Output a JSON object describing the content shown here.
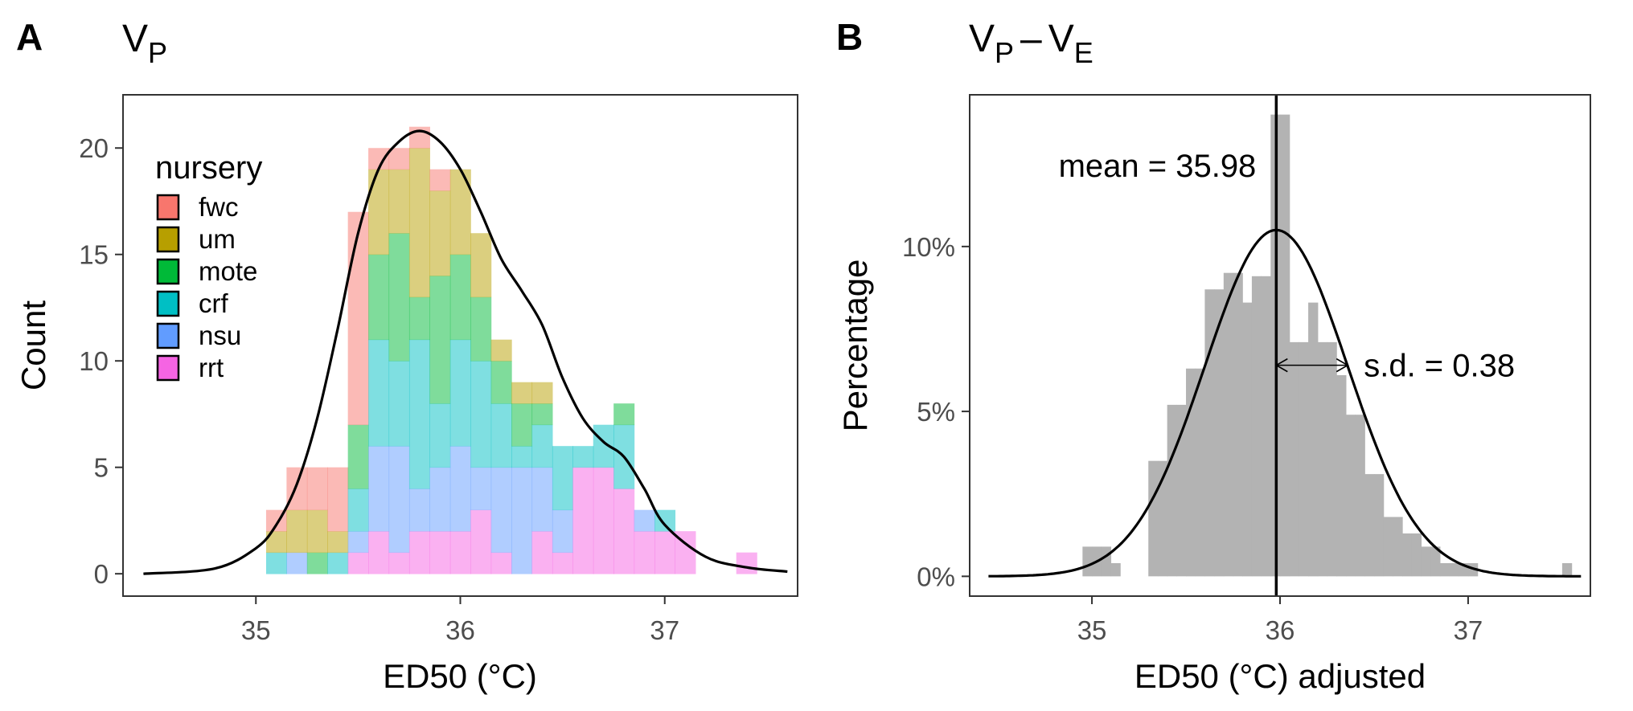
{
  "panels": {
    "a": {
      "letter": "A",
      "title_main": "V",
      "title_sub": "P"
    },
    "b": {
      "letter": "B",
      "title_main1": "V",
      "title_sub1": "P",
      "title_dash": "–",
      "title_main2": "V",
      "title_sub2": "E"
    }
  },
  "colors": {
    "fwc": "#F8766D",
    "um": "#B79F00",
    "mote": "#00BA38",
    "crf": "#00BFC4",
    "nsu": "#619CFF",
    "rrt": "#F564E3",
    "gray_bar": "#B3B3B3",
    "curve": "#000000",
    "frame": "#333333"
  },
  "chart_data": [
    {
      "type": "bar",
      "stacked": true,
      "xlabel": "ED50 (°C)",
      "ylabel": "Count",
      "xlim": [
        34.35,
        37.65
      ],
      "ylim": [
        -1.05,
        22.5
      ],
      "xticks": [
        35,
        36,
        37
      ],
      "xtick_labels": [
        "35",
        "36",
        "37"
      ],
      "yticks": [
        0,
        5,
        10,
        15,
        20
      ],
      "ytick_labels": [
        "0",
        "5",
        "10",
        "15",
        "20"
      ],
      "grid": false,
      "legend": {
        "title": "nursery",
        "placement": "top-left inside",
        "entries": [
          "fwc",
          "um",
          "mote",
          "crf",
          "nsu",
          "rrt"
        ]
      },
      "bin_width": 0.1,
      "bin_centers": [
        35.1,
        35.2,
        35.3,
        35.4,
        35.5,
        35.6,
        35.7,
        35.8,
        35.9,
        36.0,
        36.1,
        36.2,
        36.3,
        36.4,
        36.5,
        36.6,
        36.7,
        36.8,
        36.9,
        37.0,
        37.1,
        37.4
      ],
      "series": [
        {
          "name": "rrt",
          "values": [
            0,
            0,
            0,
            0,
            1,
            2,
            1,
            2,
            2,
            2,
            3,
            1,
            0,
            2,
            1,
            5,
            5,
            4,
            2,
            2,
            2,
            1
          ]
        },
        {
          "name": "nsu",
          "values": [
            0,
            1,
            0,
            0,
            1,
            4,
            5,
            2,
            3,
            4,
            2,
            4,
            5,
            3,
            2,
            0,
            0,
            0,
            1,
            0,
            0,
            0
          ]
        },
        {
          "name": "crf",
          "values": [
            1,
            0,
            0,
            1,
            2,
            5,
            4,
            7,
            3,
            5,
            5,
            3,
            1,
            2,
            3,
            1,
            2,
            3,
            0,
            1,
            0,
            0
          ]
        },
        {
          "name": "mote",
          "values": [
            0,
            0,
            1,
            0,
            3,
            4,
            6,
            2,
            6,
            4,
            3,
            2,
            2,
            1,
            0,
            0,
            0,
            1,
            0,
            0,
            0,
            0
          ]
        },
        {
          "name": "um",
          "values": [
            1,
            2,
            2,
            1,
            0,
            4,
            3,
            7,
            4,
            4,
            3,
            1,
            1,
            1,
            0,
            0,
            0,
            0,
            0,
            0,
            0,
            0
          ]
        },
        {
          "name": "fwc",
          "values": [
            1,
            2,
            2,
            3,
            10,
            1,
            1,
            1,
            1,
            0,
            0,
            0,
            0,
            0,
            0,
            0,
            0,
            0,
            0,
            0,
            0,
            0
          ]
        }
      ],
      "overlay_curve": {
        "type": "density",
        "x": [
          34.45,
          34.8,
          35.0,
          35.1,
          35.2,
          35.3,
          35.4,
          35.5,
          35.6,
          35.7,
          35.8,
          35.9,
          36.0,
          36.1,
          36.2,
          36.3,
          36.4,
          36.5,
          36.6,
          36.7,
          36.8,
          36.9,
          37.0,
          37.2,
          37.4,
          37.6
        ],
        "y": [
          0.0,
          0.25,
          1.2,
          2.3,
          4.2,
          7.3,
          11.5,
          16.0,
          19.0,
          20.3,
          20.8,
          20.3,
          19.0,
          17.0,
          14.8,
          13.3,
          11.7,
          9.2,
          7.3,
          6.2,
          5.5,
          4.0,
          2.3,
          0.8,
          0.3,
          0.1
        ]
      }
    },
    {
      "type": "bar",
      "xlabel": "ED50 (°C) adjusted",
      "ylabel": "Percentage",
      "xlim": [
        34.35,
        37.65
      ],
      "ylim": [
        -0.6,
        14.6
      ],
      "xticks": [
        35,
        36,
        37
      ],
      "xtick_labels": [
        "35",
        "36",
        "37"
      ],
      "yticks": [
        0,
        5,
        10
      ],
      "ytick_labels": [
        "0%",
        "5%",
        "10%"
      ],
      "grid": false,
      "bin_width": 0.05,
      "bin_centers": [
        34.975,
        35.025,
        35.075,
        35.125,
        35.175,
        35.225,
        35.275,
        35.325,
        35.375,
        35.425,
        35.475,
        35.525,
        35.575,
        35.625,
        35.675,
        35.725,
        35.775,
        35.825,
        35.875,
        35.925,
        35.975,
        36.025,
        36.075,
        36.125,
        36.175,
        36.225,
        36.275,
        36.325,
        36.375,
        36.425,
        36.475,
        36.525,
        36.575,
        36.625,
        36.675,
        36.725,
        36.775,
        36.825,
        36.875,
        36.925,
        36.975,
        37.025,
        37.525
      ],
      "values": [
        0.9,
        0.9,
        0.9,
        0.4,
        0,
        0,
        0,
        3.5,
        3.5,
        5.2,
        5.2,
        6.3,
        6.3,
        8.7,
        8.7,
        9.2,
        9.2,
        8.3,
        9.1,
        9.1,
        14.0,
        14.0,
        7.1,
        7.1,
        8.3,
        7.1,
        7.1,
        6.1,
        4.9,
        4.9,
        3.1,
        3.1,
        1.8,
        1.8,
        1.3,
        1.3,
        0.9,
        0.9,
        0.4,
        0.4,
        0.4,
        0.4,
        0.4
      ],
      "overlay_curve": {
        "type": "normal",
        "mean": 35.98,
        "sd": 0.38,
        "peak": 10.5,
        "x_range": [
          34.45,
          37.6
        ]
      },
      "annotations": [
        {
          "text": "mean = 35.98"
        },
        {
          "text": "s.d. = 0.38"
        }
      ]
    }
  ]
}
